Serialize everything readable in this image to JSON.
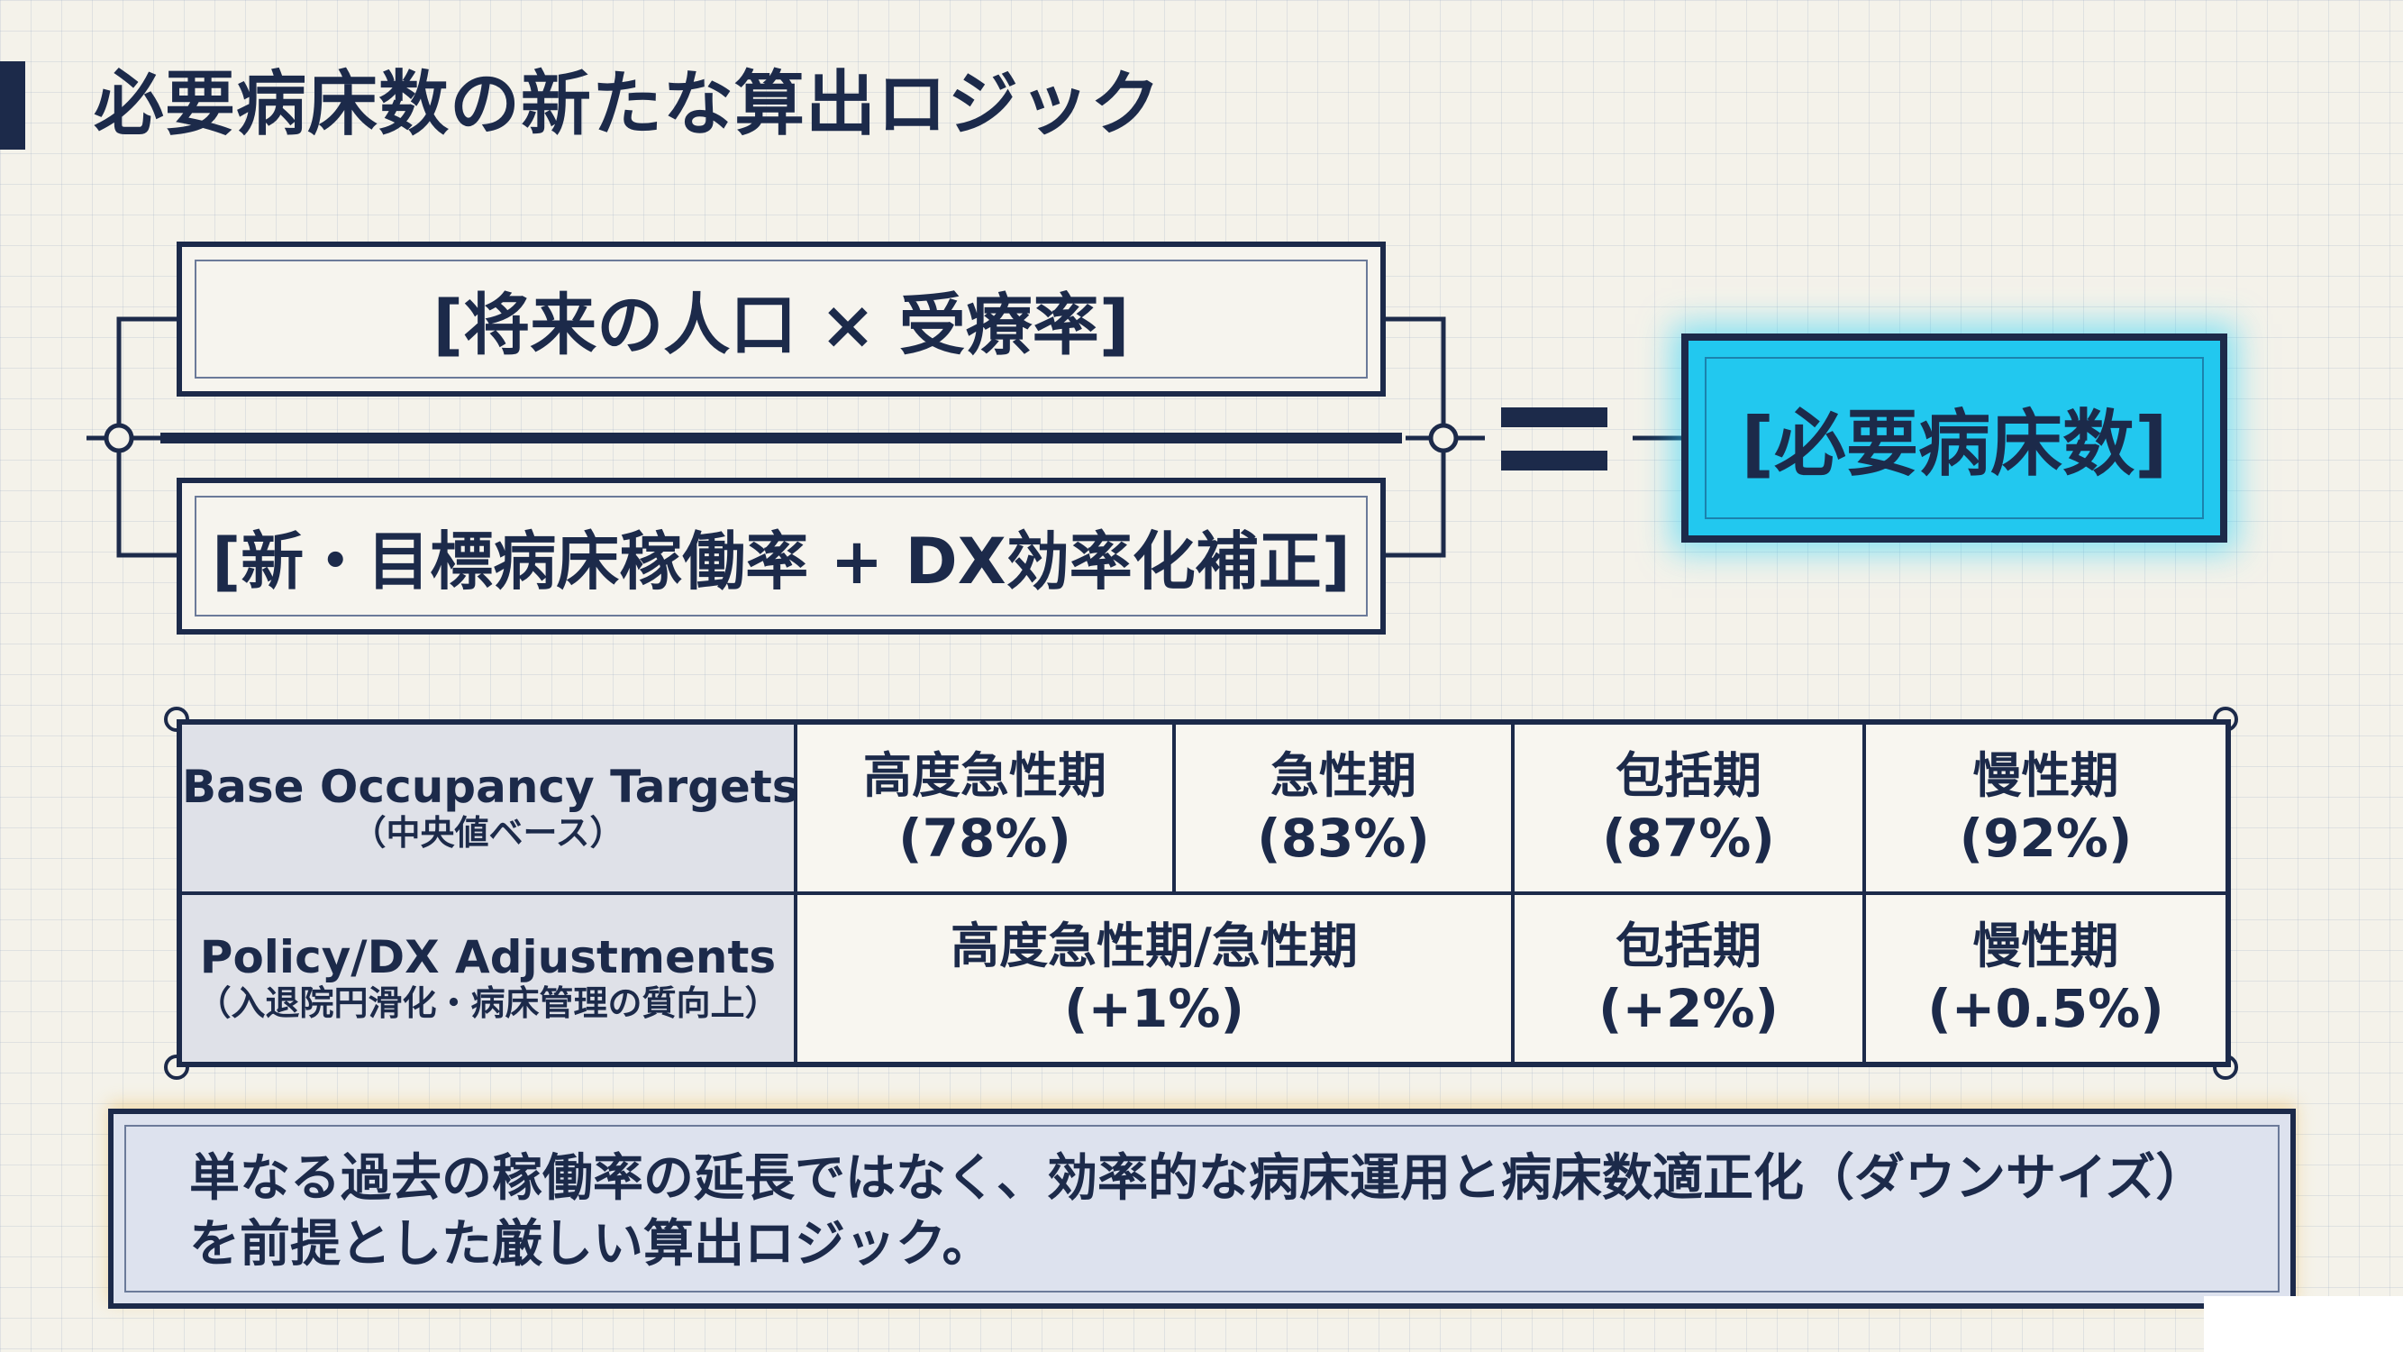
{
  "title": "必要病床数の新たな算出ロジック",
  "formula": {
    "numerator": "[将来の人口 × 受療率]",
    "denominator": "[新・目標病床稼働率 + DX効率化補正]",
    "equals": "=",
    "result": "[必要病床数]"
  },
  "table": {
    "rows": [
      {
        "header": "Base Occupancy Targets",
        "header_sub": "（中央値ベース）",
        "cells": [
          {
            "name": "高度急性期",
            "value": "(78%)",
            "span": 1
          },
          {
            "name": "急性期",
            "value": "(83%)",
            "span": 1
          },
          {
            "name": "包括期",
            "value": "(87%)",
            "span": 1
          },
          {
            "name": "慢性期",
            "value": "(92%)",
            "span": 1
          }
        ]
      },
      {
        "header": "Policy/DX Adjustments",
        "header_sub": "（入退院円滑化・病床管理の質向上）",
        "cells": [
          {
            "name": "高度急性期/急性期",
            "value": "(+1%)",
            "span": 2
          },
          {
            "name": "包括期",
            "value": "(+2%)",
            "span": 1
          },
          {
            "name": "慢性期",
            "value": "(+0.5%)",
            "span": 1
          }
        ]
      }
    ]
  },
  "note": {
    "text": "単なる過去の稼働率の延長ではなく、効率的な病床運用と病床数適正化（ダウンサイズ）を前提とした厳しい算出ロジック。"
  },
  "colors": {
    "navy": "#1c2a4a",
    "accent_cyan": "#22c8ef",
    "header_fill": "#dfe1e8",
    "note_fill": "#dde2ee"
  }
}
